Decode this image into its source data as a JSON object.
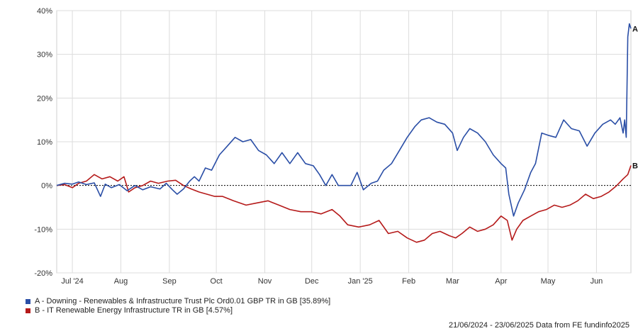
{
  "chart_data": {
    "type": "line",
    "title": "",
    "xlabel": "",
    "ylabel": "",
    "y_unit": "%",
    "ylim": [
      -20,
      40
    ],
    "y_ticks": [
      -20,
      -10,
      0,
      10,
      20,
      30,
      40
    ],
    "y_tick_labels": [
      "-20%",
      "-10%",
      "0%",
      "10%",
      "20%",
      "30%",
      "40%"
    ],
    "x_tick_labels": [
      "Jul '24",
      "Aug",
      "Sep",
      "Oct",
      "Nov",
      "Dec",
      "Jan '25",
      "Feb",
      "Mar",
      "Apr",
      "May",
      "Jun"
    ],
    "x_range": [
      "2024-06-21",
      "2025-06-23"
    ],
    "grid": true,
    "legend_position": "bottom-left",
    "series": [
      {
        "name": "A - Downing - Renewables & Infrastructure Trust Plc Ord0.01 GBP TR in GB [35.89%]",
        "end_label": "A",
        "color": "#2a4ea6",
        "points": [
          [
            "2024-06-21",
            0
          ],
          [
            "2024-06-26",
            0.5
          ],
          [
            "2024-07-01",
            0.3
          ],
          [
            "2024-07-05",
            0.8
          ],
          [
            "2024-07-10",
            0.2
          ],
          [
            "2024-07-15",
            0.6
          ],
          [
            "2024-07-19",
            -2.5
          ],
          [
            "2024-07-22",
            0.3
          ],
          [
            "2024-07-26",
            -0.5
          ],
          [
            "2024-07-31",
            0.2
          ],
          [
            "2024-08-05",
            -1.2
          ],
          [
            "2024-08-10",
            0.0
          ],
          [
            "2024-08-15",
            -1.0
          ],
          [
            "2024-08-20",
            -0.3
          ],
          [
            "2024-08-26",
            -0.8
          ],
          [
            "2024-08-30",
            0.5
          ],
          [
            "2024-09-03",
            -1.0
          ],
          [
            "2024-09-06",
            -2.0
          ],
          [
            "2024-09-10",
            -0.8
          ],
          [
            "2024-09-14",
            1.0
          ],
          [
            "2024-09-17",
            2.0
          ],
          [
            "2024-09-20",
            1.0
          ],
          [
            "2024-09-24",
            4.0
          ],
          [
            "2024-09-28",
            3.5
          ],
          [
            "2024-10-03",
            7.0
          ],
          [
            "2024-10-08",
            9.0
          ],
          [
            "2024-10-13",
            11.0
          ],
          [
            "2024-10-18",
            10.0
          ],
          [
            "2024-10-23",
            10.5
          ],
          [
            "2024-10-28",
            8.0
          ],
          [
            "2024-11-02",
            7.0
          ],
          [
            "2024-11-07",
            5.0
          ],
          [
            "2024-11-12",
            7.5
          ],
          [
            "2024-11-17",
            5.0
          ],
          [
            "2024-11-22",
            7.5
          ],
          [
            "2024-11-27",
            5.0
          ],
          [
            "2024-12-02",
            4.5
          ],
          [
            "2024-12-06",
            2.5
          ],
          [
            "2024-12-10",
            0.0
          ],
          [
            "2024-12-14",
            2.5
          ],
          [
            "2024-12-18",
            0.0
          ],
          [
            "2024-12-22",
            0.0
          ],
          [
            "2024-12-26",
            0.0
          ],
          [
            "2024-12-30",
            3.0
          ],
          [
            "2025-01-03",
            -1.0
          ],
          [
            "2025-01-08",
            0.5
          ],
          [
            "2025-01-12",
            1.0
          ],
          [
            "2025-01-16",
            3.5
          ],
          [
            "2025-01-21",
            5.0
          ],
          [
            "2025-01-26",
            8.0
          ],
          [
            "2025-01-31",
            11.0
          ],
          [
            "2025-02-05",
            13.5
          ],
          [
            "2025-02-09",
            15.0
          ],
          [
            "2025-02-14",
            15.5
          ],
          [
            "2025-02-19",
            14.5
          ],
          [
            "2025-02-24",
            14.0
          ],
          [
            "2025-03-01",
            12.0
          ],
          [
            "2025-03-04",
            8.0
          ],
          [
            "2025-03-08",
            11.0
          ],
          [
            "2025-03-12",
            13.0
          ],
          [
            "2025-03-17",
            12.0
          ],
          [
            "2025-03-22",
            10.0
          ],
          [
            "2025-03-27",
            7.0
          ],
          [
            "2025-04-01",
            5.0
          ],
          [
            "2025-04-04",
            4.0
          ],
          [
            "2025-04-06",
            -2.0
          ],
          [
            "2025-04-09",
            -7.0
          ],
          [
            "2025-04-12",
            -4.0
          ],
          [
            "2025-04-16",
            -1.0
          ],
          [
            "2025-04-20",
            3.0
          ],
          [
            "2025-04-23",
            5.0
          ],
          [
            "2025-04-27",
            12.0
          ],
          [
            "2025-05-01",
            11.5
          ],
          [
            "2025-05-06",
            11.0
          ],
          [
            "2025-05-11",
            15.0
          ],
          [
            "2025-05-16",
            13.0
          ],
          [
            "2025-05-21",
            12.5
          ],
          [
            "2025-05-26",
            9.0
          ],
          [
            "2025-05-31",
            12.0
          ],
          [
            "2025-06-05",
            14.0
          ],
          [
            "2025-06-10",
            15.0
          ],
          [
            "2025-06-13",
            14.0
          ],
          [
            "2025-06-16",
            15.5
          ],
          [
            "2025-06-18",
            12.0
          ],
          [
            "2025-06-19",
            15.0
          ],
          [
            "2025-06-20",
            11.0
          ],
          [
            "2025-06-21",
            34.0
          ],
          [
            "2025-06-22",
            37.0
          ],
          [
            "2025-06-23",
            35.89
          ]
        ]
      },
      {
        "name": "B - IT Renewable Energy Infrastructure TR in GB [4.57%]",
        "end_label": "B",
        "color": "#b51a1a",
        "points": [
          [
            "2024-06-21",
            0
          ],
          [
            "2024-06-26",
            0.2
          ],
          [
            "2024-07-01",
            -0.5
          ],
          [
            "2024-07-05",
            0.5
          ],
          [
            "2024-07-10",
            1.0
          ],
          [
            "2024-07-15",
            2.5
          ],
          [
            "2024-07-20",
            1.5
          ],
          [
            "2024-07-25",
            2.0
          ],
          [
            "2024-07-30",
            1.0
          ],
          [
            "2024-08-03",
            2.0
          ],
          [
            "2024-08-06",
            -1.5
          ],
          [
            "2024-08-10",
            -0.5
          ],
          [
            "2024-08-15",
            0.0
          ],
          [
            "2024-08-20",
            1.0
          ],
          [
            "2024-08-25",
            0.5
          ],
          [
            "2024-08-31",
            1.0
          ],
          [
            "2024-09-05",
            1.2
          ],
          [
            "2024-09-10",
            0.0
          ],
          [
            "2024-09-15",
            -0.8
          ],
          [
            "2024-09-20",
            -1.5
          ],
          [
            "2024-09-25",
            -2.0
          ],
          [
            "2024-09-30",
            -2.5
          ],
          [
            "2024-10-05",
            -2.5
          ],
          [
            "2024-10-12",
            -3.5
          ],
          [
            "2024-10-20",
            -4.5
          ],
          [
            "2024-10-27",
            -4.0
          ],
          [
            "2024-11-03",
            -3.5
          ],
          [
            "2024-11-10",
            -4.5
          ],
          [
            "2024-11-17",
            -5.5
          ],
          [
            "2024-11-24",
            -6.0
          ],
          [
            "2024-12-01",
            -6.0
          ],
          [
            "2024-12-07",
            -6.5
          ],
          [
            "2024-12-14",
            -5.5
          ],
          [
            "2024-12-19",
            -7.0
          ],
          [
            "2024-12-24",
            -9.0
          ],
          [
            "2024-12-31",
            -9.5
          ],
          [
            "2025-01-07",
            -9.0
          ],
          [
            "2025-01-13",
            -8.0
          ],
          [
            "2025-01-19",
            -11.0
          ],
          [
            "2025-01-25",
            -10.5
          ],
          [
            "2025-01-31",
            -12.0
          ],
          [
            "2025-02-06",
            -13.0
          ],
          [
            "2025-02-11",
            -12.5
          ],
          [
            "2025-02-16",
            -11.0
          ],
          [
            "2025-02-21",
            -10.5
          ],
          [
            "2025-02-27",
            -11.5
          ],
          [
            "2025-03-03",
            -12.0
          ],
          [
            "2025-03-07",
            -11.0
          ],
          [
            "2025-03-12",
            -9.5
          ],
          [
            "2025-03-17",
            -10.5
          ],
          [
            "2025-03-22",
            -10.0
          ],
          [
            "2025-03-27",
            -9.0
          ],
          [
            "2025-04-01",
            -7.0
          ],
          [
            "2025-04-05",
            -8.0
          ],
          [
            "2025-04-08",
            -12.5
          ],
          [
            "2025-04-11",
            -10.0
          ],
          [
            "2025-04-15",
            -8.0
          ],
          [
            "2025-04-20",
            -7.0
          ],
          [
            "2025-04-25",
            -6.0
          ],
          [
            "2025-04-30",
            -5.5
          ],
          [
            "2025-05-05",
            -4.5
          ],
          [
            "2025-05-10",
            -5.0
          ],
          [
            "2025-05-15",
            -4.5
          ],
          [
            "2025-05-20",
            -3.5
          ],
          [
            "2025-05-25",
            -2.0
          ],
          [
            "2025-05-30",
            -3.0
          ],
          [
            "2025-06-04",
            -2.5
          ],
          [
            "2025-06-09",
            -1.5
          ],
          [
            "2025-06-14",
            0.0
          ],
          [
            "2025-06-18",
            1.5
          ],
          [
            "2025-06-21",
            2.5
          ],
          [
            "2025-06-23",
            4.57
          ]
        ]
      }
    ]
  },
  "footer": {
    "date_range": "21/06/2024 - 23/06/2025 Data from FE fundinfo2025"
  }
}
